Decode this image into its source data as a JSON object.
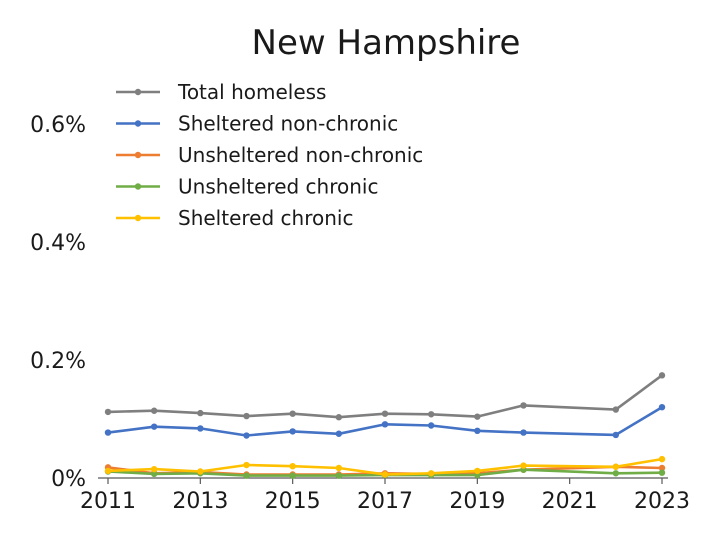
{
  "chart_data": {
    "type": "line",
    "title": "New Hampshire",
    "xlabel": "",
    "ylabel": "",
    "x": [
      2011,
      2012,
      2013,
      2014,
      2015,
      2016,
      2017,
      2018,
      2019,
      2020,
      2022,
      2023
    ],
    "xticks": [
      "2011",
      "2013",
      "2015",
      "2017",
      "2019",
      "2021",
      "2023"
    ],
    "xlim": [
      2011,
      2023
    ],
    "yticks": [
      "0%",
      "0.2%",
      "0.4%",
      "0.6%"
    ],
    "ylim": [
      0,
      0.6
    ],
    "grid": false,
    "legend_position": "top-left",
    "series": [
      {
        "name": "Total homeless",
        "color": "#7f7f7f",
        "values": [
          0.112,
          0.114,
          0.11,
          0.105,
          0.109,
          0.103,
          0.109,
          0.108,
          0.104,
          0.123,
          0.116,
          0.174
        ]
      },
      {
        "name": "Sheltered non-chronic",
        "color": "#4472c4",
        "values": [
          0.077,
          0.087,
          0.084,
          0.072,
          0.079,
          0.075,
          0.091,
          0.089,
          0.08,
          0.077,
          0.073,
          0.12
        ]
      },
      {
        "name": "Unsheltered non-chronic",
        "color": "#ed7d31",
        "values": [
          0.018,
          0.008,
          0.01,
          0.006,
          0.006,
          0.006,
          0.008,
          0.007,
          0.008,
          0.014,
          0.019,
          0.017
        ]
      },
      {
        "name": "Unsheltered chronic",
        "color": "#70ad47",
        "values": [
          0.011,
          0.007,
          0.008,
          0.004,
          0.004,
          0.004,
          0.005,
          0.005,
          0.005,
          0.014,
          0.008,
          0.009
        ]
      },
      {
        "name": "Sheltered chronic",
        "color": "#ffc000",
        "values": [
          0.012,
          0.015,
          0.011,
          0.022,
          0.02,
          0.017,
          0.006,
          0.008,
          0.012,
          0.021,
          0.019,
          0.032
        ]
      }
    ]
  }
}
